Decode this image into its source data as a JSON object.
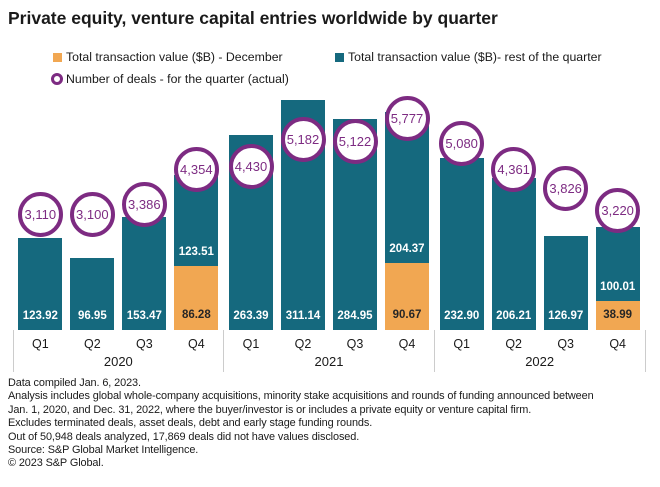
{
  "title": "Private equity, venture capital entries worldwide by quarter",
  "legend": {
    "items": [
      {
        "label": "Total transaction value ($B) - December",
        "marker": "square-icon",
        "color_key": "december"
      },
      {
        "label": "Total transaction value ($B)- rest of the quarter",
        "marker": "square-icon",
        "color_key": "rest"
      },
      {
        "label": "Number of deals - for the quarter (actual)",
        "marker": "ring-icon",
        "color_key": "deals_ring"
      }
    ]
  },
  "colors": {
    "december": "#f1a752",
    "rest": "#15697e",
    "deals_ring": "#7d2b82",
    "bar_value_on_teal": "#ffffff",
    "bar_value_on_orange": "#262626",
    "text": "#1a1a1a",
    "separator": "#cccccc"
  },
  "chart_data": {
    "type": "bar",
    "stacked": true,
    "title": "Private equity, venture capital entries worldwide by quarter",
    "value_unit": "$B",
    "series": [
      {
        "name": "Total transaction value ($B) - December"
      },
      {
        "name": "Total transaction value ($B)- rest of the quarter"
      },
      {
        "name": "Number of deals - for the quarter (actual)",
        "role": "secondary-circle-markers"
      }
    ],
    "groups": [
      {
        "year": "2020",
        "quarters": [
          {
            "label": "Q1",
            "december": null,
            "rest": 123.92,
            "deals": 3110
          },
          {
            "label": "Q2",
            "december": null,
            "rest": 96.95,
            "deals": 3100
          },
          {
            "label": "Q3",
            "december": null,
            "rest": 153.47,
            "deals": 3386
          },
          {
            "label": "Q4",
            "december": 86.28,
            "rest": 123.51,
            "deals": 4354
          }
        ]
      },
      {
        "year": "2021",
        "quarters": [
          {
            "label": "Q1",
            "december": null,
            "rest": 263.39,
            "deals": 4430
          },
          {
            "label": "Q2",
            "december": null,
            "rest": 311.14,
            "deals": 5182
          },
          {
            "label": "Q3",
            "december": null,
            "rest": 284.95,
            "deals": 5122
          },
          {
            "label": "Q4",
            "december": 90.67,
            "rest": 204.37,
            "deals": 5777
          }
        ]
      },
      {
        "year": "2022",
        "quarters": [
          {
            "label": "Q1",
            "december": null,
            "rest": 232.9,
            "deals": 5080
          },
          {
            "label": "Q2",
            "december": null,
            "rest": 206.21,
            "deals": 4361
          },
          {
            "label": "Q3",
            "december": null,
            "rest": 126.97,
            "deals": 3826
          },
          {
            "label": "Q4",
            "december": 38.99,
            "rest": 100.01,
            "deals": 3220
          }
        ]
      }
    ],
    "value_axis_visible": false,
    "gridlines": false,
    "legend_position": "top-left"
  },
  "footer": {
    "lines": [
      "Data compiled Jan. 6, 2023.",
      "Analysis includes global whole-company acquisitions, minority stake acquisitions and rounds of funding announced between",
      "Jan. 1, 2020, and Dec. 31, 2022, where the buyer/investor is or includes a private equity or venture capital firm.",
      "Excludes terminated deals, asset deals, debt and early stage funding rounds.",
      "Out of 50,948 deals analyzed, 17,869 deals did not have values disclosed.",
      "Source: S&P Global Market Intelligence.",
      "© 2023 S&P Global."
    ]
  }
}
